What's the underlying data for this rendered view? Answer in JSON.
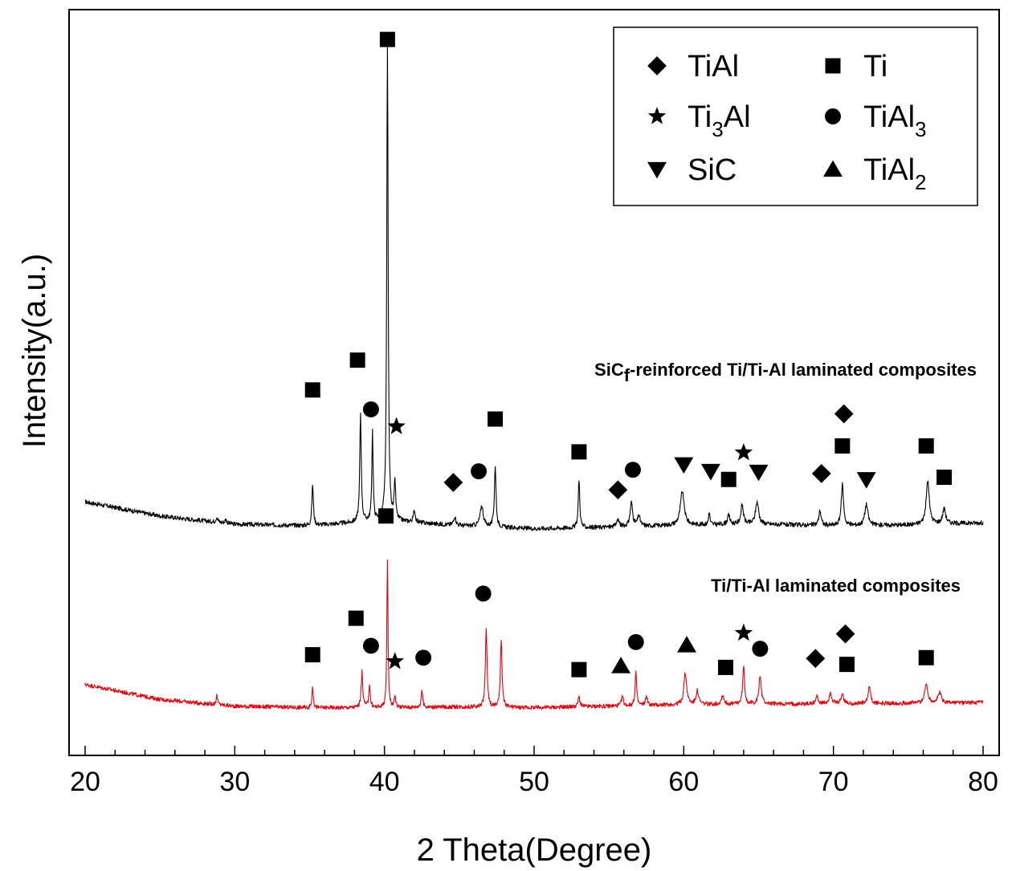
{
  "chart_data": {
    "type": "line",
    "xlabel": "2 Theta(Degree)",
    "ylabel": "Intensity(a.u.)",
    "xlim": [
      20,
      80
    ],
    "xticks": [
      20,
      30,
      40,
      50,
      60,
      70,
      80
    ],
    "ylim": [
      0,
      100
    ],
    "legend": {
      "position": "top-right",
      "entries": [
        {
          "marker": "diamond",
          "label": "TiAl"
        },
        {
          "marker": "square",
          "label": "Ti"
        },
        {
          "marker": "star",
          "label": "Ti",
          "sub": "3",
          "suffix": "Al"
        },
        {
          "marker": "circle",
          "label": "TiAl",
          "sub": "3"
        },
        {
          "marker": "triangle-down",
          "label": "SiC"
        },
        {
          "marker": "triangle-up",
          "label": "TiAl",
          "sub": "2"
        }
      ]
    },
    "series": [
      {
        "name": "SiCf-reinforced Ti/Ti-Al laminated composites",
        "label": {
          "pre": "SiC",
          "sub": "f",
          "post": "-reinforced Ti/Ti-Al laminated composites"
        },
        "color": "#000000",
        "baseline": [
          [
            20,
            34.0
          ],
          [
            25,
            32.1
          ],
          [
            30,
            31.0
          ],
          [
            35,
            30.8
          ],
          [
            40,
            31.5
          ],
          [
            45,
            30.8
          ],
          [
            50,
            30.4
          ],
          [
            55,
            30.6
          ],
          [
            60,
            30.9
          ],
          [
            65,
            31.0
          ],
          [
            70,
            30.8
          ],
          [
            75,
            30.9
          ],
          [
            80,
            31.2
          ]
        ],
        "peaks": [
          [
            28.8,
            0.7,
            0.15
          ],
          [
            29.4,
            0.5,
            0.15
          ],
          [
            35.2,
            5.5,
            0.12
          ],
          [
            38.4,
            14.3,
            0.12
          ],
          [
            39.2,
            12.0,
            0.1
          ],
          [
            40.2,
            63.5,
            0.11
          ],
          [
            40.7,
            5.0,
            0.12
          ],
          [
            42.0,
            1.6,
            0.15
          ],
          [
            44.7,
            1.2,
            0.18
          ],
          [
            46.5,
            2.8,
            0.25
          ],
          [
            47.4,
            8.2,
            0.13
          ],
          [
            53.0,
            6.5,
            0.12
          ],
          [
            55.6,
            1.0,
            0.2
          ],
          [
            56.5,
            3.2,
            0.2
          ],
          [
            57.0,
            1.4,
            0.2
          ],
          [
            59.9,
            4.5,
            0.3
          ],
          [
            61.7,
            1.8,
            0.1
          ],
          [
            63.0,
            1.2,
            0.2
          ],
          [
            63.9,
            2.6,
            0.2
          ],
          [
            64.9,
            3.0,
            0.25
          ],
          [
            69.1,
            2.0,
            0.18
          ],
          [
            70.6,
            5.5,
            0.18
          ],
          [
            72.2,
            2.8,
            0.25
          ],
          [
            76.3,
            5.8,
            0.25
          ],
          [
            77.4,
            2.0,
            0.25
          ]
        ],
        "noise": 0.3,
        "markers": [
          {
            "x": 35.2,
            "y": 49.0,
            "m": "square"
          },
          {
            "x": 38.2,
            "y": 53.0,
            "m": "square"
          },
          {
            "x": 39.1,
            "y": 46.4,
            "m": "circle"
          },
          {
            "x": 40.2,
            "y": 96.0,
            "m": "square"
          },
          {
            "x": 40.8,
            "y": 44.1,
            "m": "star"
          },
          {
            "x": 44.6,
            "y": 36.6,
            "m": "diamond"
          },
          {
            "x": 46.3,
            "y": 38.1,
            "m": "circle"
          },
          {
            "x": 47.4,
            "y": 45.1,
            "m": "square"
          },
          {
            "x": 53.0,
            "y": 40.7,
            "m": "square"
          },
          {
            "x": 55.6,
            "y": 35.6,
            "m": "diamond"
          },
          {
            "x": 56.6,
            "y": 38.3,
            "m": "circle"
          },
          {
            "x": 60.0,
            "y": 39.0,
            "m": "triangle-down"
          },
          {
            "x": 61.8,
            "y": 38.1,
            "m": "triangle-down"
          },
          {
            "x": 63.0,
            "y": 37.0,
            "m": "square"
          },
          {
            "x": 64.0,
            "y": 40.6,
            "m": "star"
          },
          {
            "x": 65.0,
            "y": 38.0,
            "m": "triangle-down"
          },
          {
            "x": 69.2,
            "y": 37.8,
            "m": "diamond"
          },
          {
            "x": 70.7,
            "y": 45.8,
            "m": "diamond"
          },
          {
            "x": 70.6,
            "y": 41.5,
            "m": "square"
          },
          {
            "x": 72.2,
            "y": 37.0,
            "m": "triangle-down"
          },
          {
            "x": 76.2,
            "y": 41.5,
            "m": "square"
          },
          {
            "x": 77.4,
            "y": 37.3,
            "m": "square"
          }
        ]
      },
      {
        "name": "Ti/Ti-Al laminated composites",
        "label": {
          "pre": "Ti/Ti-Al laminated composites",
          "sub": "",
          "post": ""
        },
        "color": "#e8000b",
        "baseline": [
          [
            20,
            9.5
          ],
          [
            25,
            7.5
          ],
          [
            30,
            6.6
          ],
          [
            35,
            6.4
          ],
          [
            40,
            6.4
          ],
          [
            45,
            6.5
          ],
          [
            50,
            6.4
          ],
          [
            55,
            6.6
          ],
          [
            60,
            6.8
          ],
          [
            65,
            6.9
          ],
          [
            70,
            6.9
          ],
          [
            75,
            7.0
          ],
          [
            80,
            7.1
          ]
        ],
        "peaks": [
          [
            28.8,
            1.2,
            0.12
          ],
          [
            35.2,
            3.0,
            0.1
          ],
          [
            38.5,
            4.8,
            0.13
          ],
          [
            39.0,
            3.0,
            0.12
          ],
          [
            40.2,
            19.8,
            0.09
          ],
          [
            40.7,
            1.5,
            0.12
          ],
          [
            42.5,
            2.3,
            0.12
          ],
          [
            46.8,
            10.6,
            0.13
          ],
          [
            47.8,
            9.0,
            0.13
          ],
          [
            53.0,
            1.3,
            0.15
          ],
          [
            55.9,
            1.3,
            0.15
          ],
          [
            56.8,
            4.5,
            0.12
          ],
          [
            57.5,
            1.2,
            0.15
          ],
          [
            60.1,
            4.2,
            0.22
          ],
          [
            60.9,
            1.8,
            0.2
          ],
          [
            62.6,
            1.2,
            0.2
          ],
          [
            64.0,
            5.0,
            0.15
          ],
          [
            65.1,
            3.8,
            0.18
          ],
          [
            68.9,
            1.0,
            0.2
          ],
          [
            69.8,
            1.5,
            0.2
          ],
          [
            70.6,
            1.3,
            0.2
          ],
          [
            72.4,
            2.3,
            0.18
          ],
          [
            76.2,
            2.5,
            0.25
          ],
          [
            77.1,
            1.4,
            0.25
          ]
        ],
        "noise": 0.28,
        "markers": [
          {
            "x": 35.2,
            "y": 13.5,
            "m": "square"
          },
          {
            "x": 38.1,
            "y": 18.4,
            "m": "square"
          },
          {
            "x": 39.1,
            "y": 14.7,
            "m": "circle"
          },
          {
            "x": 40.1,
            "y": 32.1,
            "m": "square"
          },
          {
            "x": 40.7,
            "y": 12.6,
            "m": "star"
          },
          {
            "x": 42.6,
            "y": 13.1,
            "m": "circle"
          },
          {
            "x": 46.6,
            "y": 21.7,
            "m": "circle"
          },
          {
            "x": 53.0,
            "y": 11.5,
            "m": "square"
          },
          {
            "x": 55.8,
            "y": 12.0,
            "m": "triangle-up"
          },
          {
            "x": 56.8,
            "y": 15.2,
            "m": "circle"
          },
          {
            "x": 60.2,
            "y": 14.8,
            "m": "triangle-up"
          },
          {
            "x": 62.8,
            "y": 11.8,
            "m": "square"
          },
          {
            "x": 64.0,
            "y": 16.4,
            "m": "star"
          },
          {
            "x": 65.1,
            "y": 14.3,
            "m": "circle"
          },
          {
            "x": 68.8,
            "y": 13.0,
            "m": "diamond"
          },
          {
            "x": 70.8,
            "y": 16.3,
            "m": "diamond"
          },
          {
            "x": 70.9,
            "y": 12.2,
            "m": "square"
          },
          {
            "x": 76.2,
            "y": 13.1,
            "m": "square"
          }
        ]
      }
    ]
  }
}
